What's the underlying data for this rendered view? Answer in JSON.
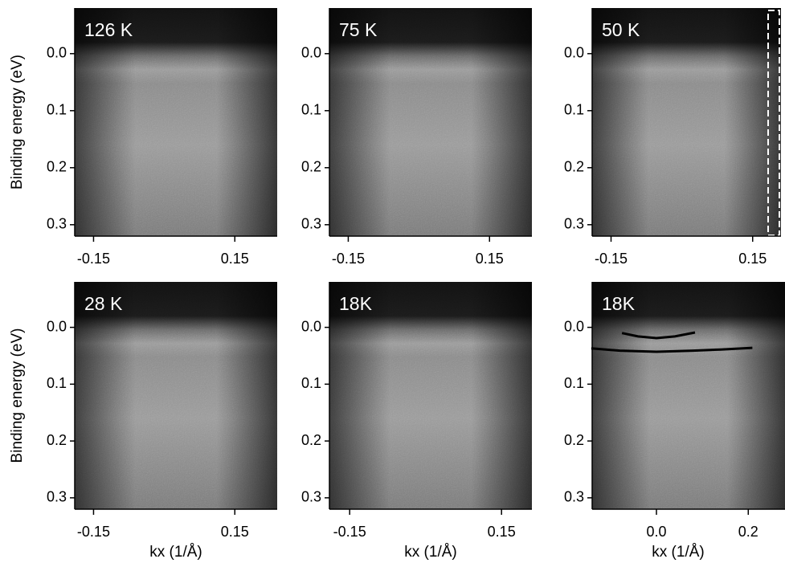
{
  "chart_data": [
    {
      "type": "image",
      "title": "126 K",
      "ylabel": "Binding energy (eV)",
      "xlim": [
        -0.19,
        0.24
      ],
      "ylim": [
        -0.08,
        0.32
      ],
      "xticks": [
        -0.15,
        0.15
      ],
      "yticks": [
        {
          "value": 0,
          "label": "0.0"
        },
        0.1,
        0.2,
        0.3
      ]
    },
    {
      "type": "image",
      "title": "75 K",
      "xlim": [
        -0.19,
        0.24
      ],
      "ylim": [
        -0.08,
        0.32
      ],
      "xticks": [
        -0.15,
        0.15
      ],
      "yticks": [
        {
          "value": 0,
          "label": "0.0"
        },
        0.1,
        0.2,
        0.3
      ]
    },
    {
      "type": "image",
      "title": "50 K",
      "xlim": [
        -0.19,
        0.21
      ],
      "ylim": [
        -0.08,
        0.32
      ],
      "xticks": [
        -0.15,
        0.15
      ],
      "yticks": [
        {
          "value": 0,
          "label": "0.0"
        },
        0.1,
        0.2,
        0.3
      ]
    },
    {
      "type": "image",
      "title": "28 K",
      "ylabel": "Binding energy (eV)",
      "xlabel": "kx (1/Å)",
      "xlim": [
        -0.19,
        0.24
      ],
      "ylim": [
        -0.08,
        0.32
      ],
      "xticks": [
        -0.15,
        0.15
      ],
      "yticks": [
        {
          "value": 0,
          "label": "0.0"
        },
        0.1,
        0.2,
        0.3
      ]
    },
    {
      "type": "image",
      "title": "18K",
      "xlabel": "kx (1/Å)",
      "xlim": [
        -0.19,
        0.21
      ],
      "ylim": [
        -0.08,
        0.32
      ],
      "xticks": [
        -0.15,
        0.15
      ],
      "yticks": [
        {
          "value": 0,
          "label": "0.0"
        },
        0.1,
        0.2,
        0.3
      ]
    },
    {
      "type": "image",
      "title": "18K",
      "xlabel": "kx (1/Å)",
      "xlim": [
        -0.14,
        0.28
      ],
      "ylim": [
        -0.08,
        0.32
      ],
      "xticks": [
        {
          "value": 0,
          "label": "0.0"
        },
        0.2
      ],
      "yticks": [
        {
          "value": 0,
          "label": "0.0"
        },
        0.1,
        0.2,
        0.3
      ],
      "series": [
        {
          "color": "#000000",
          "x": [
            -0.075,
            -0.04,
            0,
            0.04,
            0.084
          ],
          "values": [
            0.01,
            0.016,
            0.019,
            0.016,
            0.009
          ]
        },
        {
          "color": "#000000",
          "x": [
            -0.142,
            -0.08,
            0,
            0.08,
            0.14,
            0.209
          ],
          "values": [
            0.037,
            0.041,
            0.043,
            0.041,
            0.039,
            0.036
          ]
        }
      ]
    }
  ]
}
